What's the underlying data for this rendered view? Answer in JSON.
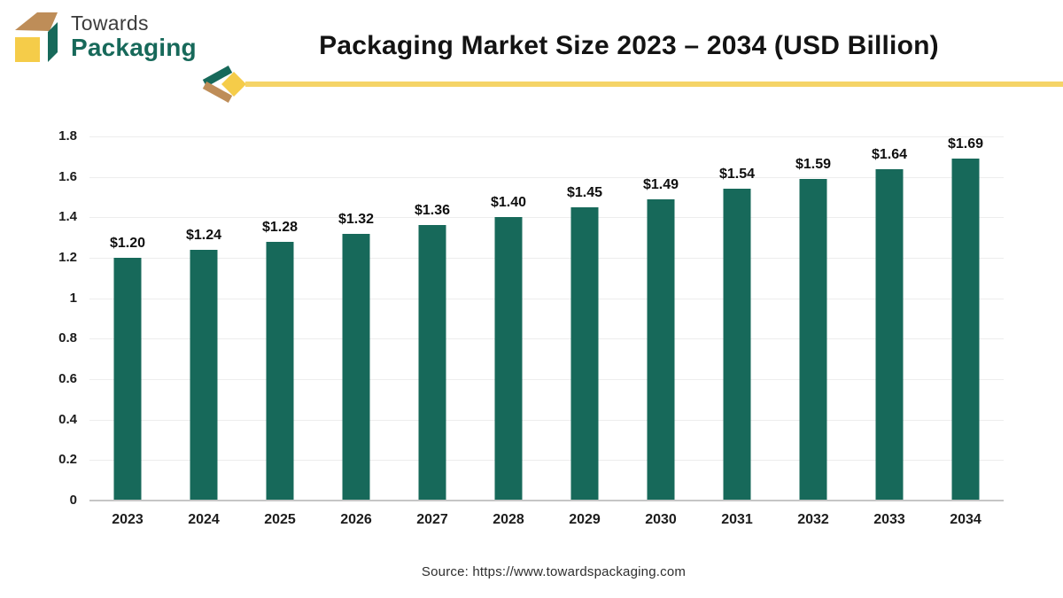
{
  "header": {
    "logo": {
      "line1": "Towards",
      "line2": "Packaging"
    },
    "title": "Packaging Market Size 2023 – 2034 (USD Billion)"
  },
  "chart_data": {
    "type": "bar",
    "title": "Packaging Market Size 2023 – 2034 (USD Billion)",
    "categories": [
      "2023",
      "2024",
      "2025",
      "2026",
      "2027",
      "2028",
      "2029",
      "2030",
      "2031",
      "2032",
      "2033",
      "2034"
    ],
    "values": [
      1.2,
      1.24,
      1.28,
      1.32,
      1.36,
      1.4,
      1.45,
      1.49,
      1.54,
      1.59,
      1.64,
      1.69
    ],
    "bar_labels": [
      "$1.20",
      "$1.24",
      "$1.28",
      "$1.32",
      "$1.36",
      "$1.40",
      "$1.45",
      "$1.49",
      "$1.54",
      "$1.59",
      "$1.64",
      "$1.69"
    ],
    "xlabel": "",
    "ylabel": "",
    "ylim": [
      0,
      1.8
    ],
    "yticks": [
      0,
      0.2,
      0.4,
      0.6,
      0.8,
      1,
      1.2,
      1.4,
      1.6,
      1.8
    ],
    "ytick_labels": [
      "0",
      "0.2",
      "0.4",
      "0.6",
      "0.8",
      "1",
      "1.2",
      "1.4",
      "1.6",
      "1.8"
    ],
    "grid": true,
    "legend": false,
    "bar_color": "#17695a"
  },
  "footer": {
    "source": "Source: https://www.towardspackaging.com"
  },
  "colors": {
    "bar_green": "#17695a",
    "logo_green": "#17695a",
    "logo_yellow": "#f5cc49",
    "logo_tan": "#be8d58",
    "divider_yellow": "#f5d467",
    "grid_gray": "#ededed",
    "axis_gray": "#c5c5c5",
    "title_black": "#131313"
  }
}
